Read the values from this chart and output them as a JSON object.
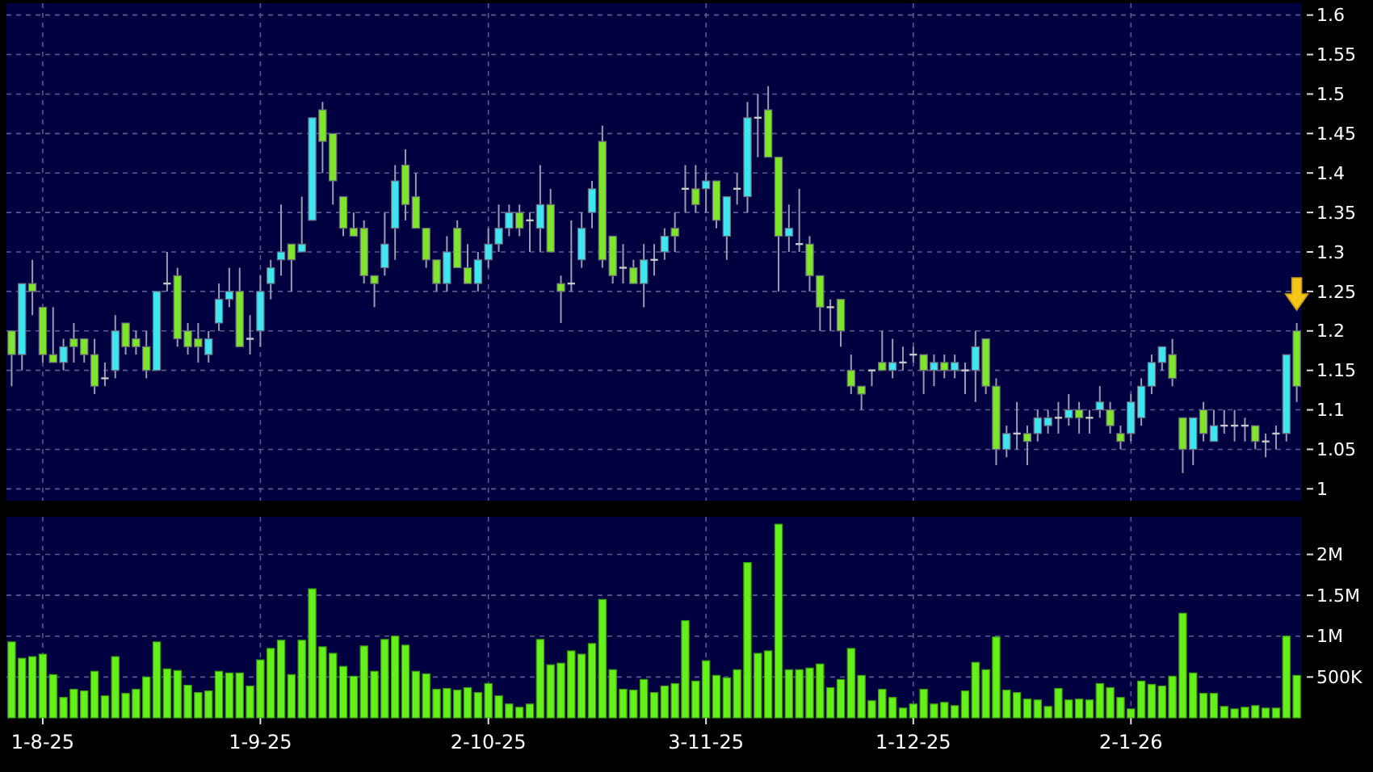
{
  "chart_data": [
    {
      "type": "candlestick",
      "categories": [
        null,
        null,
        null,
        null,
        null,
        null,
        null,
        null,
        null,
        null,
        null,
        null,
        null,
        null,
        null,
        null,
        null,
        null,
        null,
        null,
        null,
        null,
        null,
        null,
        null,
        null,
        null,
        null,
        null,
        null,
        null,
        null,
        null,
        null,
        null,
        null,
        null,
        null,
        null,
        null,
        null,
        null,
        null,
        null,
        null,
        null,
        null,
        null,
        null,
        null,
        null,
        null,
        null,
        null,
        null,
        null,
        null,
        null,
        null,
        null,
        null,
        null,
        null,
        null,
        null,
        null,
        null,
        null,
        null,
        null,
        null,
        null,
        null,
        null,
        null,
        null,
        null,
        null,
        null,
        null,
        null,
        null,
        null,
        null,
        null,
        null,
        null,
        null,
        null,
        null,
        null,
        null,
        null,
        null,
        null,
        null,
        null,
        null,
        null,
        null,
        null,
        null,
        null,
        null,
        null,
        null,
        null,
        null,
        null,
        null,
        null,
        null,
        null,
        null,
        null,
        null,
        null,
        null,
        null,
        null,
        null,
        null,
        null,
        null,
        null
      ],
      "ohlc": [
        [
          1.2,
          1.2,
          1.13,
          1.17
        ],
        [
          1.17,
          1.26,
          1.15,
          1.26
        ],
        [
          1.26,
          1.29,
          1.22,
          1.25
        ],
        [
          1.23,
          1.23,
          1.16,
          1.17
        ],
        [
          1.17,
          1.23,
          1.16,
          1.16
        ],
        [
          1.16,
          1.19,
          1.15,
          1.18
        ],
        [
          1.19,
          1.21,
          1.16,
          1.18
        ],
        [
          1.19,
          1.19,
          1.16,
          1.17
        ],
        [
          1.17,
          1.19,
          1.12,
          1.13
        ],
        [
          1.14,
          1.16,
          1.13,
          1.14
        ],
        [
          1.15,
          1.22,
          1.14,
          1.2
        ],
        [
          1.21,
          1.21,
          1.17,
          1.18
        ],
        [
          1.19,
          1.2,
          1.17,
          1.18
        ],
        [
          1.18,
          1.2,
          1.14,
          1.15
        ],
        [
          1.15,
          1.25,
          1.15,
          1.25
        ],
        [
          1.26,
          1.3,
          1.25,
          1.26
        ],
        [
          1.27,
          1.28,
          1.18,
          1.19
        ],
        [
          1.2,
          1.21,
          1.17,
          1.18
        ],
        [
          1.19,
          1.21,
          1.16,
          1.18
        ],
        [
          1.17,
          1.2,
          1.16,
          1.19
        ],
        [
          1.21,
          1.26,
          1.2,
          1.24
        ],
        [
          1.24,
          1.28,
          1.23,
          1.25
        ],
        [
          1.25,
          1.28,
          1.18,
          1.18
        ],
        [
          1.19,
          1.22,
          1.17,
          1.19
        ],
        [
          1.2,
          1.27,
          1.18,
          1.25
        ],
        [
          1.26,
          1.29,
          1.24,
          1.28
        ],
        [
          1.29,
          1.36,
          1.27,
          1.3
        ],
        [
          1.31,
          1.31,
          1.25,
          1.29
        ],
        [
          1.3,
          1.37,
          1.3,
          1.31
        ],
        [
          1.34,
          1.47,
          1.34,
          1.47
        ],
        [
          1.48,
          1.49,
          1.4,
          1.44
        ],
        [
          1.45,
          1.45,
          1.36,
          1.39
        ],
        [
          1.37,
          1.37,
          1.32,
          1.33
        ],
        [
          1.33,
          1.35,
          1.32,
          1.32
        ],
        [
          1.33,
          1.34,
          1.26,
          1.27
        ],
        [
          1.27,
          1.27,
          1.23,
          1.26
        ],
        [
          1.28,
          1.35,
          1.27,
          1.31
        ],
        [
          1.33,
          1.41,
          1.29,
          1.39
        ],
        [
          1.41,
          1.43,
          1.34,
          1.36
        ],
        [
          1.37,
          1.4,
          1.33,
          1.33
        ],
        [
          1.33,
          1.33,
          1.28,
          1.29
        ],
        [
          1.29,
          1.29,
          1.25,
          1.26
        ],
        [
          1.26,
          1.32,
          1.25,
          1.3
        ],
        [
          1.33,
          1.34,
          1.28,
          1.28
        ],
        [
          1.28,
          1.31,
          1.26,
          1.26
        ],
        [
          1.26,
          1.3,
          1.25,
          1.29
        ],
        [
          1.29,
          1.33,
          1.28,
          1.31
        ],
        [
          1.31,
          1.36,
          1.3,
          1.33
        ],
        [
          1.33,
          1.36,
          1.32,
          1.35
        ],
        [
          1.35,
          1.36,
          1.32,
          1.33
        ],
        [
          1.34,
          1.35,
          1.3,
          1.34
        ],
        [
          1.33,
          1.41,
          1.3,
          1.36
        ],
        [
          1.36,
          1.38,
          1.3,
          1.3
        ],
        [
          1.26,
          1.27,
          1.21,
          1.25
        ],
        [
          1.26,
          1.34,
          1.25,
          1.26
        ],
        [
          1.29,
          1.35,
          1.28,
          1.33
        ],
        [
          1.35,
          1.39,
          1.33,
          1.38
        ],
        [
          1.44,
          1.46,
          1.28,
          1.29
        ],
        [
          1.32,
          1.32,
          1.26,
          1.27
        ],
        [
          1.28,
          1.31,
          1.26,
          1.28
        ],
        [
          1.28,
          1.29,
          1.26,
          1.26
        ],
        [
          1.26,
          1.31,
          1.23,
          1.29
        ],
        [
          1.29,
          1.31,
          1.27,
          1.29
        ],
        [
          1.3,
          1.33,
          1.29,
          1.32
        ],
        [
          1.33,
          1.35,
          1.3,
          1.32
        ],
        [
          1.38,
          1.41,
          1.35,
          1.38
        ],
        [
          1.38,
          1.41,
          1.35,
          1.36
        ],
        [
          1.38,
          1.4,
          1.35,
          1.39
        ],
        [
          1.39,
          1.39,
          1.33,
          1.34
        ],
        [
          1.32,
          1.37,
          1.29,
          1.37
        ],
        [
          1.38,
          1.4,
          1.36,
          1.38
        ],
        [
          1.37,
          1.49,
          1.35,
          1.47
        ],
        [
          1.47,
          1.5,
          1.42,
          1.47
        ],
        [
          1.48,
          1.51,
          1.42,
          1.42
        ],
        [
          1.42,
          1.42,
          1.25,
          1.32
        ],
        [
          1.32,
          1.36,
          1.3,
          1.33
        ],
        [
          1.31,
          1.38,
          1.3,
          1.31
        ],
        [
          1.31,
          1.32,
          1.25,
          1.27
        ],
        [
          1.27,
          1.27,
          1.2,
          1.23
        ],
        [
          1.23,
          1.24,
          1.2,
          1.23
        ],
        [
          1.24,
          1.24,
          1.18,
          1.2
        ],
        [
          1.15,
          1.17,
          1.12,
          1.13
        ],
        [
          1.13,
          1.13,
          1.1,
          1.12
        ],
        [
          1.15,
          1.15,
          1.13,
          1.15
        ],
        [
          1.16,
          1.2,
          1.15,
          1.15
        ],
        [
          1.15,
          1.19,
          1.14,
          1.16
        ],
        [
          1.16,
          1.18,
          1.15,
          1.16
        ],
        [
          1.17,
          1.18,
          1.16,
          1.17
        ],
        [
          1.17,
          1.17,
          1.12,
          1.15
        ],
        [
          1.15,
          1.17,
          1.13,
          1.16
        ],
        [
          1.16,
          1.17,
          1.14,
          1.15
        ],
        [
          1.15,
          1.17,
          1.14,
          1.16
        ],
        [
          1.15,
          1.16,
          1.12,
          1.15
        ],
        [
          1.15,
          1.2,
          1.11,
          1.18
        ],
        [
          1.19,
          1.19,
          1.12,
          1.13
        ],
        [
          1.13,
          1.14,
          1.03,
          1.05
        ],
        [
          1.05,
          1.08,
          1.04,
          1.07
        ],
        [
          1.07,
          1.11,
          1.05,
          1.07
        ],
        [
          1.07,
          1.08,
          1.03,
          1.06
        ],
        [
          1.07,
          1.1,
          1.06,
          1.09
        ],
        [
          1.08,
          1.1,
          1.07,
          1.09
        ],
        [
          1.09,
          1.11,
          1.07,
          1.09
        ],
        [
          1.09,
          1.12,
          1.08,
          1.1
        ],
        [
          1.1,
          1.11,
          1.07,
          1.09
        ],
        [
          1.09,
          1.1,
          1.07,
          1.09
        ],
        [
          1.1,
          1.13,
          1.09,
          1.11
        ],
        [
          1.1,
          1.11,
          1.07,
          1.08
        ],
        [
          1.07,
          1.08,
          1.05,
          1.06
        ],
        [
          1.07,
          1.12,
          1.06,
          1.11
        ],
        [
          1.09,
          1.14,
          1.08,
          1.13
        ],
        [
          1.13,
          1.17,
          1.12,
          1.16
        ],
        [
          1.16,
          1.18,
          1.15,
          1.18
        ],
        [
          1.17,
          1.19,
          1.13,
          1.14
        ],
        [
          1.09,
          1.09,
          1.02,
          1.05
        ],
        [
          1.05,
          1.09,
          1.03,
          1.09
        ],
        [
          1.1,
          1.11,
          1.06,
          1.07
        ],
        [
          1.06,
          1.1,
          1.06,
          1.08
        ],
        [
          1.08,
          1.1,
          1.07,
          1.08
        ],
        [
          1.08,
          1.1,
          1.06,
          1.08
        ],
        [
          1.08,
          1.09,
          1.06,
          1.08
        ],
        [
          1.08,
          1.08,
          1.05,
          1.06
        ],
        [
          1.06,
          1.07,
          1.04,
          1.06
        ],
        [
          1.07,
          1.08,
          1.05,
          1.07
        ],
        [
          1.07,
          1.17,
          1.06,
          1.17
        ],
        [
          1.2,
          1.21,
          1.11,
          1.13
        ]
      ],
      "colors": [
        "#7ee52a",
        "#3ee6f2",
        "#7ee52a",
        "#7ee52a",
        "#7ee52a",
        "#3ee6f2",
        "#7ee52a",
        "#7ee52a",
        "#7ee52a",
        "#c8c8c8",
        "#3ee6f2",
        "#7ee52a",
        "#7ee52a",
        "#7ee52a",
        "#3ee6f2",
        "#c8c8c8",
        "#7ee52a",
        "#7ee52a",
        "#7ee52a",
        "#3ee6f2",
        "#3ee6f2",
        "#3ee6f2",
        "#7ee52a",
        "#c8c8c8",
        "#3ee6f2",
        "#3ee6f2",
        "#3ee6f2",
        "#7ee52a",
        "#3ee6f2",
        "#3ee6f2",
        "#7ee52a",
        "#7ee52a",
        "#7ee52a",
        "#7ee52a",
        "#7ee52a",
        "#7ee52a",
        "#3ee6f2",
        "#3ee6f2",
        "#7ee52a",
        "#7ee52a",
        "#7ee52a",
        "#7ee52a",
        "#3ee6f2",
        "#7ee52a",
        "#7ee52a",
        "#3ee6f2",
        "#3ee6f2",
        "#3ee6f2",
        "#3ee6f2",
        "#7ee52a",
        "#c8c8c8",
        "#3ee6f2",
        "#7ee52a",
        "#7ee52a",
        "#c8c8c8",
        "#3ee6f2",
        "#3ee6f2",
        "#7ee52a",
        "#7ee52a",
        "#c8c8c8",
        "#7ee52a",
        "#3ee6f2",
        "#c8c8c8",
        "#3ee6f2",
        "#7ee52a",
        "#c8c8c8",
        "#7ee52a",
        "#3ee6f2",
        "#7ee52a",
        "#3ee6f2",
        "#c8c8c8",
        "#3ee6f2",
        "#c8c8c8",
        "#7ee52a",
        "#7ee52a",
        "#3ee6f2",
        "#c8c8c8",
        "#7ee52a",
        "#7ee52a",
        "#c8c8c8",
        "#7ee52a",
        "#7ee52a",
        "#7ee52a",
        "#c8c8c8",
        "#7ee52a",
        "#3ee6f2",
        "#c8c8c8",
        "#c8c8c8",
        "#7ee52a",
        "#3ee6f2",
        "#7ee52a",
        "#3ee6f2",
        "#c8c8c8",
        "#3ee6f2",
        "#7ee52a",
        "#7ee52a",
        "#3ee6f2",
        "#c8c8c8",
        "#7ee52a",
        "#3ee6f2",
        "#3ee6f2",
        "#c8c8c8",
        "#3ee6f2",
        "#7ee52a",
        "#c8c8c8",
        "#3ee6f2",
        "#7ee52a",
        "#7ee52a",
        "#3ee6f2",
        "#3ee6f2",
        "#3ee6f2",
        "#3ee6f2",
        "#7ee52a",
        "#7ee52a",
        "#3ee6f2",
        "#7ee52a",
        "#3ee6f2",
        "#c8c8c8",
        "#c8c8c8",
        "#c8c8c8",
        "#7ee52a",
        "#c8c8c8",
        "#c8c8c8",
        "#3ee6f2",
        "#7ee52a"
      ],
      "ylim": [
        0.985,
        1.615
      ],
      "yticks": [
        1,
        1.05,
        1.1,
        1.15,
        1.2,
        1.25,
        1.3,
        1.35,
        1.4,
        1.45,
        1.5,
        1.55,
        1.6
      ],
      "grid": true,
      "tick_labels": "y"
    },
    {
      "type": "bar",
      "categories": [
        null,
        null,
        null,
        "1-8-25",
        null,
        null,
        null,
        null,
        null,
        null,
        null,
        null,
        null,
        null,
        null,
        null,
        null,
        null,
        null,
        null,
        null,
        null,
        null,
        null,
        "1-9-25",
        null,
        null,
        null,
        null,
        null,
        null,
        null,
        null,
        null,
        null,
        null,
        null,
        null,
        null,
        null,
        null,
        null,
        null,
        null,
        null,
        null,
        "2-10-25",
        null,
        null,
        null,
        null,
        null,
        null,
        null,
        null,
        null,
        null,
        null,
        null,
        null,
        null,
        null,
        null,
        null,
        null,
        null,
        null,
        "3-11-25",
        null,
        null,
        null,
        null,
        null,
        null,
        null,
        null,
        null,
        null,
        null,
        null,
        null,
        null,
        null,
        null,
        null,
        null,
        null,
        "1-12-25",
        null,
        null,
        null,
        null,
        null,
        null,
        null,
        null,
        null,
        null,
        null,
        null,
        null,
        null,
        null,
        null,
        null,
        null,
        null,
        null,
        "2-1-26",
        null,
        null,
        null,
        null,
        null,
        null,
        null,
        null,
        null,
        null,
        null,
        null,
        null,
        null,
        null,
        null
      ],
      "values": [
        930000,
        730000,
        750000,
        780000,
        530000,
        250000,
        350000,
        330000,
        570000,
        270000,
        750000,
        300000,
        350000,
        500000,
        930000,
        600000,
        580000,
        400000,
        310000,
        330000,
        570000,
        550000,
        550000,
        390000,
        710000,
        850000,
        950000,
        530000,
        950000,
        1580000,
        870000,
        790000,
        630000,
        510000,
        880000,
        570000,
        960000,
        1000000,
        890000,
        570000,
        540000,
        350000,
        360000,
        340000,
        370000,
        310000,
        420000,
        270000,
        170000,
        130000,
        170000,
        960000,
        650000,
        670000,
        820000,
        780000,
        910000,
        1450000,
        590000,
        350000,
        340000,
        470000,
        310000,
        390000,
        420000,
        1190000,
        450000,
        700000,
        520000,
        490000,
        590000,
        1900000,
        790000,
        820000,
        2370000,
        590000,
        590000,
        610000,
        660000,
        370000,
        470000,
        850000,
        520000,
        210000,
        350000,
        250000,
        120000,
        170000,
        350000,
        170000,
        190000,
        150000,
        330000,
        680000,
        590000,
        990000,
        340000,
        310000,
        230000,
        220000,
        140000,
        360000,
        220000,
        230000,
        220000,
        420000,
        370000,
        250000,
        110000,
        450000,
        410000,
        390000,
        510000,
        1280000,
        550000,
        300000,
        300000,
        140000,
        110000,
        130000,
        150000,
        120000,
        120000,
        1000000,
        520000
      ],
      "color": "#66f01a",
      "ylim": [
        0,
        2460000
      ],
      "yticks": [
        {
          "value": 500000,
          "label": "500K"
        },
        {
          "value": 1000000,
          "label": "1M"
        },
        {
          "value": 1500000,
          "label": "1.5M"
        },
        {
          "value": 2000000,
          "label": "2M"
        }
      ],
      "grid": true
    }
  ]
}
